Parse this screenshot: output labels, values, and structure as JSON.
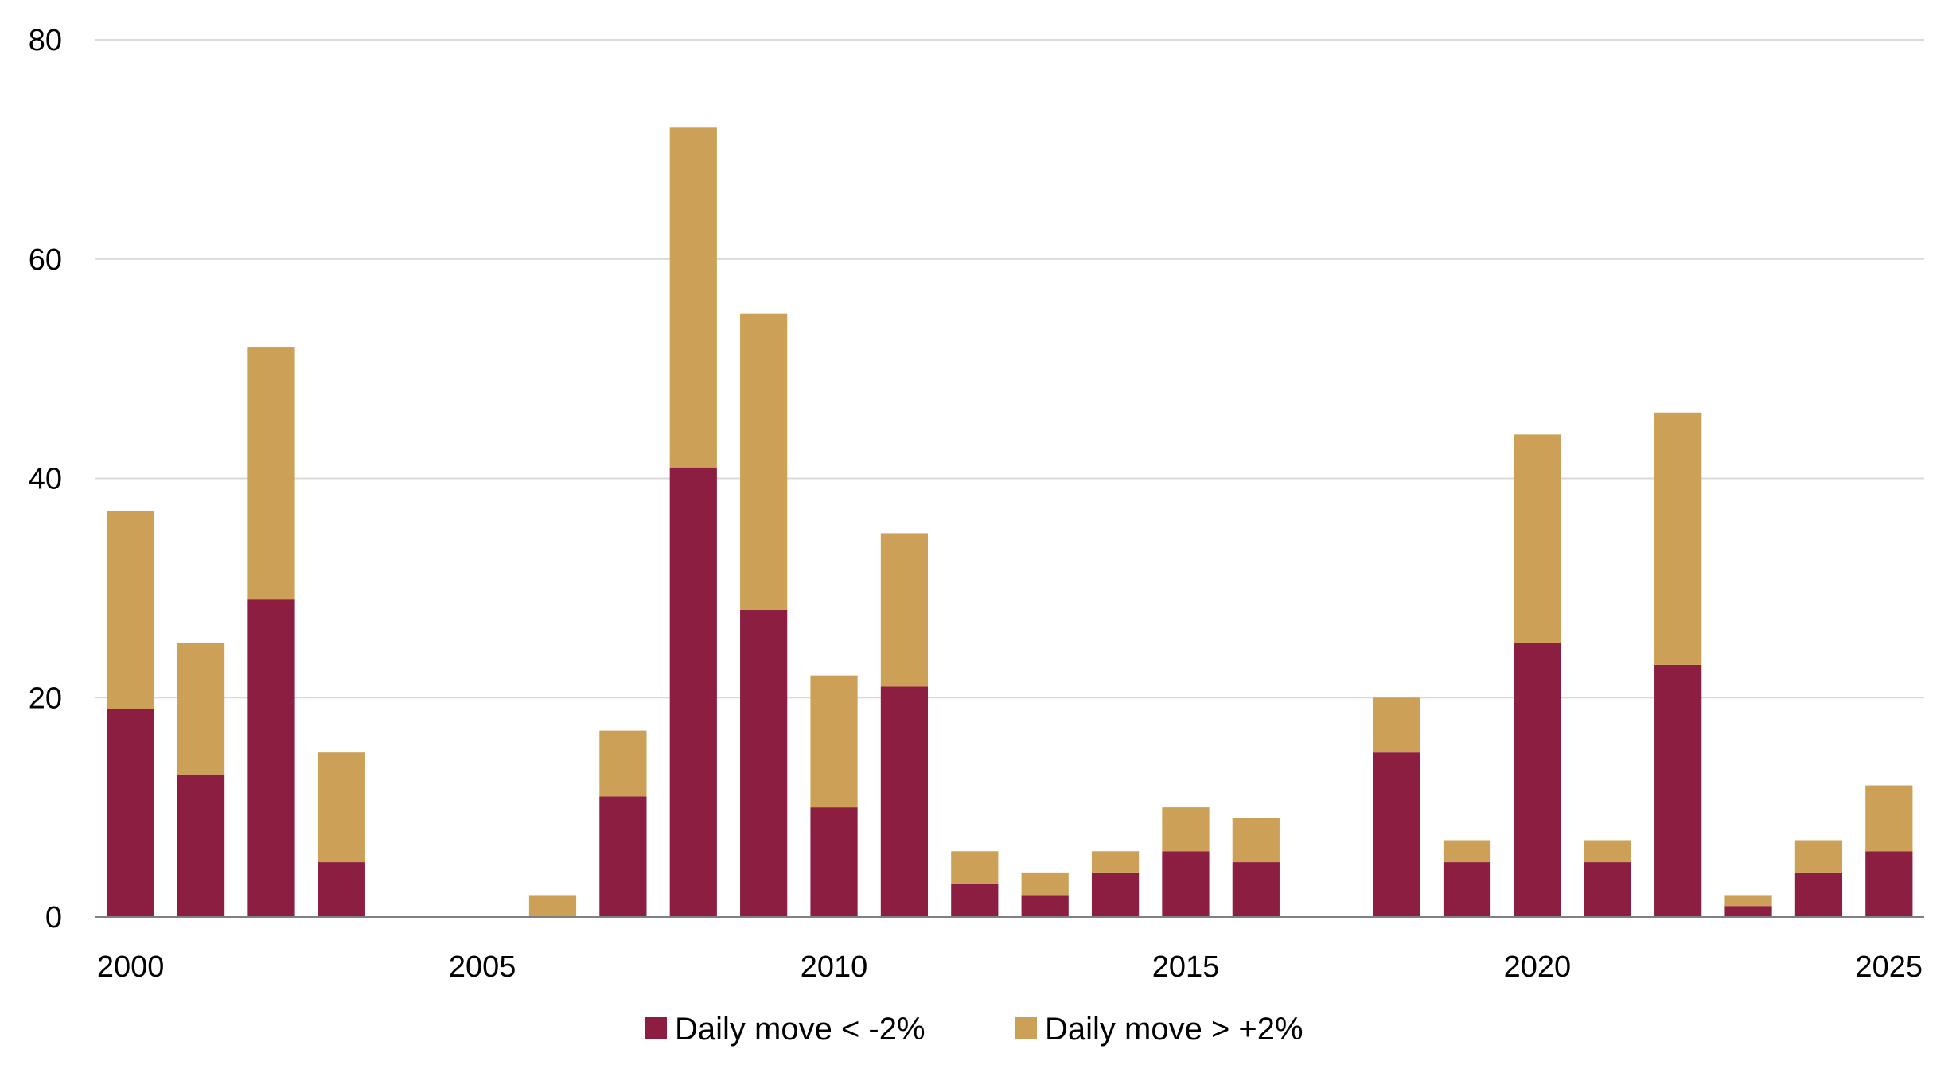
{
  "chart_data": {
    "type": "bar",
    "stacked": true,
    "title": "",
    "xlabel": "",
    "ylabel": "",
    "ylim": [
      0,
      80
    ],
    "yticks": [
      "0",
      "20",
      "40",
      "60",
      "80"
    ],
    "xtick_labels": [
      "2000",
      "2005",
      "2010",
      "2015",
      "2020",
      "2025"
    ],
    "categories": [
      2000,
      2001,
      2002,
      2003,
      2004,
      2005,
      2006,
      2007,
      2008,
      2009,
      2010,
      2011,
      2012,
      2013,
      2014,
      2015,
      2016,
      2017,
      2018,
      2019,
      2020,
      2021,
      2022,
      2023,
      2024,
      2025
    ],
    "series": [
      {
        "name": "Daily move < -2%",
        "color": "#8B1E41",
        "values": [
          19,
          13,
          29,
          5,
          0,
          0,
          0,
          11,
          41,
          28,
          10,
          21,
          3,
          2,
          4,
          6,
          5,
          0,
          15,
          5,
          25,
          5,
          23,
          1,
          4,
          6
        ]
      },
      {
        "name": "Daily move > +2%",
        "color": "#CCA157",
        "values": [
          18,
          12,
          23,
          10,
          0,
          0,
          2,
          6,
          31,
          27,
          12,
          14,
          3,
          2,
          2,
          4,
          4,
          0,
          5,
          2,
          19,
          2,
          23,
          1,
          3,
          6
        ]
      }
    ],
    "grid": true,
    "legend_position": "bottom-center"
  }
}
